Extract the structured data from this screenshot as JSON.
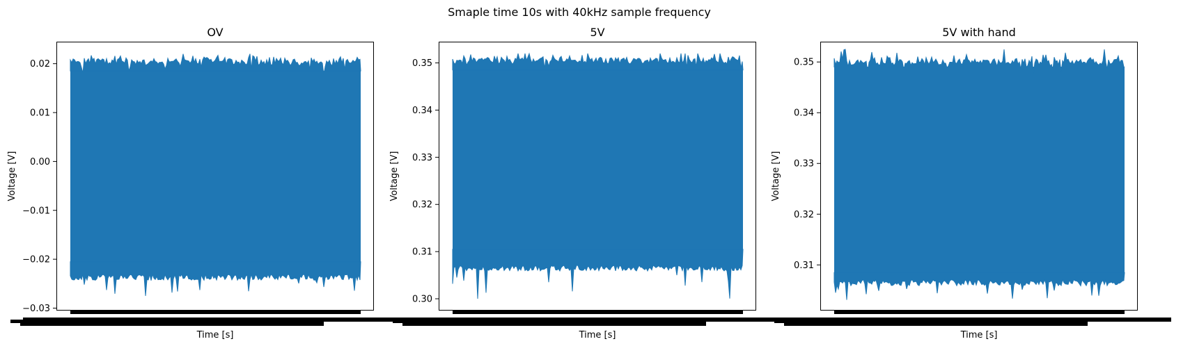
{
  "figure": {
    "suptitle": "Smaple time 10s with 40kHz sample frequency"
  },
  "chart_data": [
    {
      "type": "line",
      "title": "OV",
      "xlabel": "Time [s]",
      "ylabel": "Voltage [V]",
      "ylim": [
        -0.0305,
        0.0245
      ],
      "yticks": [
        -0.03,
        -0.02,
        -0.01,
        0.0,
        0.01,
        0.02
      ],
      "ytick_labels": [
        "−0.03",
        "−0.02",
        "−0.01",
        "0.00",
        "0.01",
        "0.02"
      ],
      "xlim": [
        0,
        10
      ],
      "x_tick_labels_illegible": true,
      "series": [
        {
          "color": "#1f77b4",
          "x_range": [
            0,
            10
          ],
          "envelope_min": -0.0237,
          "envelope_max": 0.0205,
          "bulk_low": -0.0205,
          "bulk_high": 0.0185,
          "extreme_min": -0.0275,
          "extreme_max": 0.022
        }
      ]
    },
    {
      "type": "line",
      "title": "5V",
      "xlabel": "Time [s]",
      "ylabel": "Voltage [V]",
      "ylim": [
        0.2975,
        0.3545
      ],
      "yticks": [
        0.3,
        0.31,
        0.32,
        0.33,
        0.34,
        0.35
      ],
      "ytick_labels": [
        "0.30",
        "0.31",
        "0.32",
        "0.33",
        "0.34",
        "0.35"
      ],
      "xlim": [
        0,
        10
      ],
      "x_tick_labels_illegible": true,
      "series": [
        {
          "color": "#1f77b4",
          "x_range": [
            0,
            10
          ],
          "envelope_min": 0.3065,
          "envelope_max": 0.3505,
          "bulk_low": 0.3105,
          "bulk_high": 0.3485,
          "extreme_min": 0.3,
          "extreme_max": 0.352
        }
      ]
    },
    {
      "type": "line",
      "title": "5V with hand",
      "xlabel": "Time [s]",
      "ylabel": "Voltage [V]",
      "ylim": [
        0.301,
        0.354
      ],
      "yticks": [
        0.31,
        0.32,
        0.33,
        0.34,
        0.35
      ],
      "ytick_labels": [
        "0.31",
        "0.32",
        "0.33",
        "0.34",
        "0.35"
      ],
      "xlim": [
        0,
        10
      ],
      "x_tick_labels_illegible": true,
      "series": [
        {
          "color": "#1f77b4",
          "x_range": [
            0,
            10
          ],
          "envelope_min": 0.3065,
          "envelope_max": 0.35,
          "bulk_low": 0.3085,
          "bulk_high": 0.349,
          "extreme_min": 0.3025,
          "extreme_max": 0.3525
        }
      ]
    }
  ]
}
